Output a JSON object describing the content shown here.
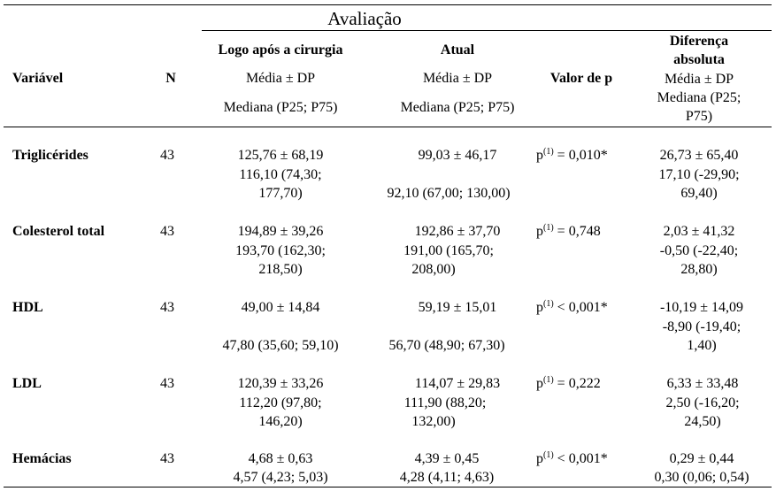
{
  "title": "Avaliação",
  "headers": {
    "variavel": "Variável",
    "n": "N",
    "logo_title": "Logo após  a cirurgia",
    "logo_media": "Média ± DP",
    "logo_mediana": "Mediana (P25;  P75)",
    "atual_title": "Atual",
    "atual_media": "Média ± DP",
    "atual_mediana": "Mediana (P25;  P75)",
    "valorp": "Valor de p",
    "dif_title1": "Diferença",
    "dif_title2": "absoluta",
    "dif_media": "Média ± DP",
    "dif_mediana1": "Mediana (P25;",
    "dif_mediana2": "P75)"
  },
  "rows": [
    {
      "variavel": "Triglicérides",
      "n": "43",
      "logo1": "125,76 ± 68,19",
      "logo2": "116,10 (74,30;",
      "logo3": "177,70)",
      "atual1": "99,03 ± 46,17",
      "atual2": "92,10 (67,00;  130,00)",
      "p_pre": "p",
      "p_sup": "(1)",
      "p_post": " = 0,010*",
      "dif1": "26,73 ± 65,40",
      "dif2": "17,10 (-29,90;",
      "dif3": "69,40)"
    },
    {
      "variavel": "Colesterol  total",
      "n": "43",
      "logo1": "194,89 ± 39,26",
      "logo2": "193,70 (162,30;",
      "logo3": "218,50)",
      "atual1": "192,86 ± 37,70",
      "atual2": "191,00 (165,70;",
      "atual3": "208,00)",
      "p_pre": "p",
      "p_sup": "(1)",
      "p_post": " = 0,748",
      "dif1": "2,03 ± 41,32",
      "dif2": "-0,50 (-22,40;",
      "dif3": "28,80)"
    },
    {
      "variavel": "HDL",
      "n": "43",
      "logo1": "49,00 ± 14,84",
      "logo2": "47,80 (35,60;  59,10)",
      "atual1": "59,19 ± 15,01",
      "atual2": "56,70 (48,90;  67,30)",
      "p_pre": "p",
      "p_sup": "(1)",
      "p_post": " < 0,001*",
      "dif1": "-10,19 ± 14,09",
      "dif2": "-8,90 (-19,40;",
      "dif3": "1,40)"
    },
    {
      "variavel": "LDL",
      "n": "43",
      "logo1": "120,39 ± 33,26",
      "logo2": "112,20 (97,80;",
      "logo3": "146,20)",
      "atual1": "114,07 ± 29,83",
      "atual2": "111,90 (88,20;",
      "atual3": "132,00)",
      "p_pre": "p",
      "p_sup": "(1)",
      "p_post": " = 0,222",
      "dif1": "6,33 ± 33,48",
      "dif2": "2,50 (-16,20;",
      "dif3": "24,50)"
    },
    {
      "variavel": "Hemácias",
      "n": "43",
      "logo1": "4,68 ± 0,63",
      "logo2": "4,57 (4,23;  5,03)",
      "atual1": "4,39 ± 0,45",
      "atual2": "4,28 (4,11;  4,63)",
      "p_pre": "p",
      "p_sup": "(1)",
      "p_post": " < 0,001*",
      "dif1": "0,29 ± 0,44",
      "dif2": "0,30 (0,06;  0,54)"
    }
  ]
}
